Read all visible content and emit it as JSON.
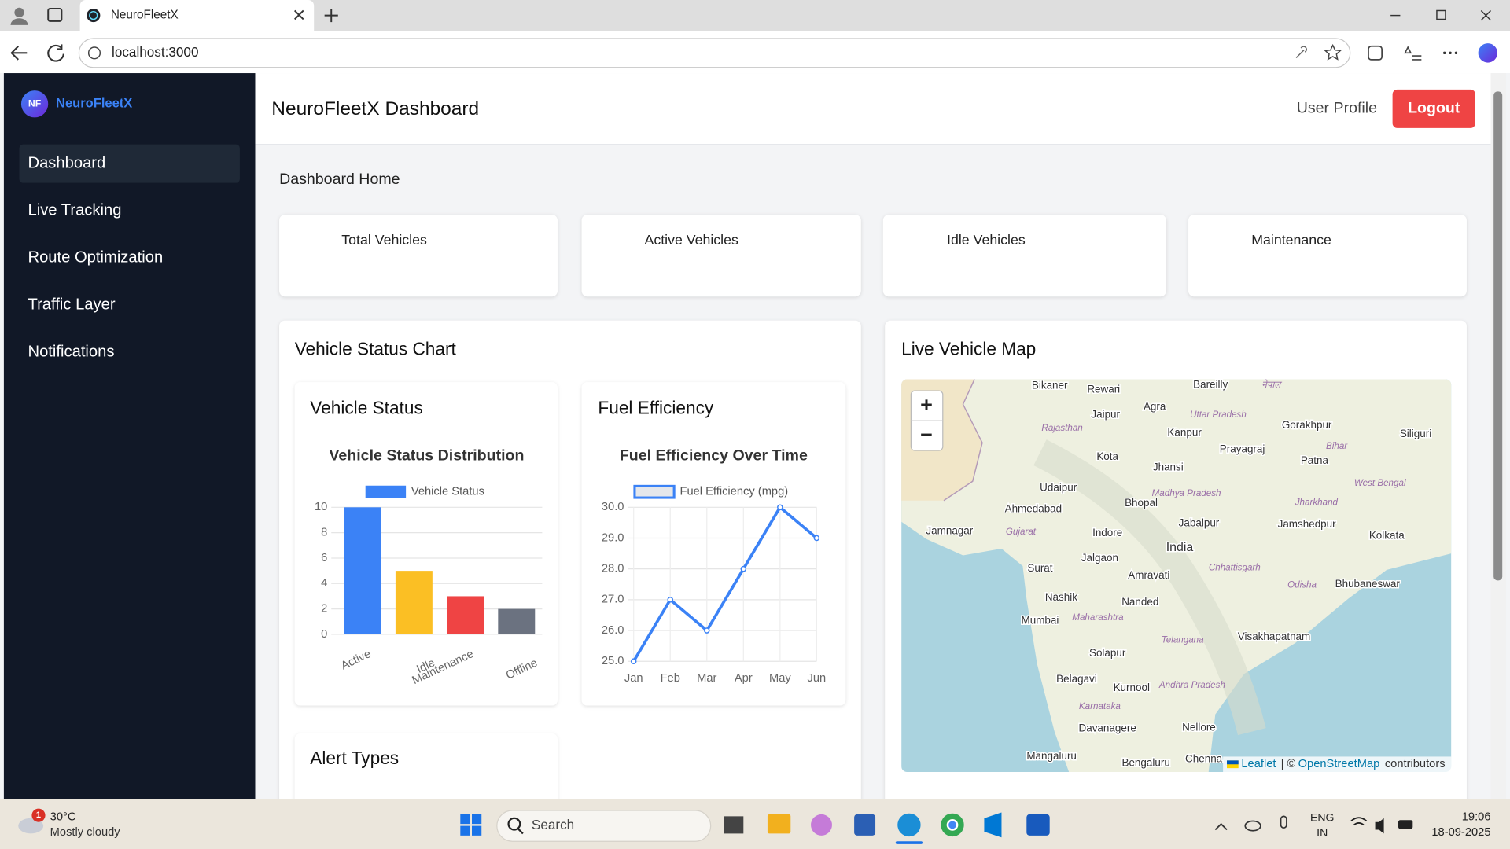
{
  "browser": {
    "tab_title": "NeuroFleetX",
    "url": "localhost:3000"
  },
  "sidebar": {
    "badge": "NF",
    "brand": "NeuroFleetX",
    "menu": [
      "Dashboard",
      "Live Tracking",
      "Route Optimization",
      "Traffic Layer",
      "Notifications"
    ]
  },
  "header": {
    "title": "NeuroFleetX Dashboard",
    "user_profile": "User Profile",
    "logout": "Logout"
  },
  "main": {
    "heading": "Dashboard Home",
    "stat_cards": [
      "Total Vehicles",
      "Active Vehicles",
      "Idle Vehicles",
      "Maintenance"
    ],
    "status_panel": {
      "title": "Vehicle Status Chart",
      "cards": [
        "Vehicle Status",
        "Fuel Efficiency",
        "Alert Types"
      ]
    },
    "map_panel": {
      "title": "Live Vehicle Map",
      "zoom_in": "+",
      "zoom_out": "−",
      "attribution": {
        "leaflet": "Leaflet",
        "separator": "| ©",
        "osm": "OpenStreetMap",
        "suffix": "contributors"
      },
      "places": [
        "Bikaner",
        "Rewari",
        "Bareilly",
        "Jaipur",
        "Agra",
        "Kanpur",
        "Gorakhpur",
        "Siliguri",
        "Kota",
        "Prayagraj",
        "Patna",
        "Jhansi",
        "Udaipur",
        "Ahmedabad",
        "Bhopal",
        "Jamshedpur",
        "Jamnagar",
        "Indore",
        "Jabalpur",
        "India",
        "Kolkata",
        "Jalgaon",
        "Surat",
        "Amravati",
        "Bhubaneswar",
        "Nashik",
        "Nanded",
        "Mumbai",
        "Visakhapatnam",
        "Solapur",
        "Belagavi",
        "Kurnool",
        "Nellore",
        "Davanagere",
        "Mangaluru",
        "Bengaluru",
        "Chenna"
      ],
      "regions": [
        "Rajasthan",
        "Uttar Pradesh",
        "Bihar",
        "Madhya Pradesh",
        "Jharkhand",
        "West Bengal",
        "Gujarat",
        "Chhattisgarh",
        "Odisha",
        "Maharashtra",
        "Telangana",
        "Andhra Pradesh",
        "Karnataka",
        "नेपाल"
      ]
    }
  },
  "chart_data": [
    {
      "type": "bar",
      "title": "Vehicle Status Distribution",
      "categories": [
        "Active",
        "Idle",
        "Maintenance",
        "Offline"
      ],
      "series": [
        {
          "name": "Vehicle Status",
          "color": "#3b82f6",
          "colors": [
            "#3b82f6",
            "#fbbf24",
            "#ef4444",
            "#6b7280"
          ],
          "values": [
            10,
            5,
            3,
            2
          ]
        }
      ],
      "ylim": [
        0,
        10
      ],
      "yticks": [
        0,
        2,
        4,
        6,
        8,
        10
      ],
      "grid": true
    },
    {
      "type": "line",
      "title": "Fuel Efficiency Over Time",
      "categories": [
        "Jan",
        "Feb",
        "Mar",
        "Apr",
        "May",
        "Jun"
      ],
      "series": [
        {
          "name": "Fuel Efficiency (mpg)",
          "color": "#3b82f6",
          "values": [
            25,
            27,
            26,
            28,
            30,
            29
          ]
        }
      ],
      "ylim": [
        25,
        30
      ],
      "yticks": [
        {
          "value": 25,
          "label": "25.0"
        },
        {
          "value": 26,
          "label": "26.0"
        },
        {
          "value": 27,
          "label": "27.0"
        },
        {
          "value": 28,
          "label": "28.0"
        },
        {
          "value": 29,
          "label": "29.0"
        },
        {
          "value": 30,
          "label": "30.0"
        }
      ],
      "grid": true
    }
  ],
  "taskbar": {
    "badge": "1",
    "temperature": "30°C",
    "weather": "Mostly cloudy",
    "search": "Search",
    "language": "ENG",
    "region": "IN",
    "time": "19:06",
    "date": "18-09-2025"
  }
}
